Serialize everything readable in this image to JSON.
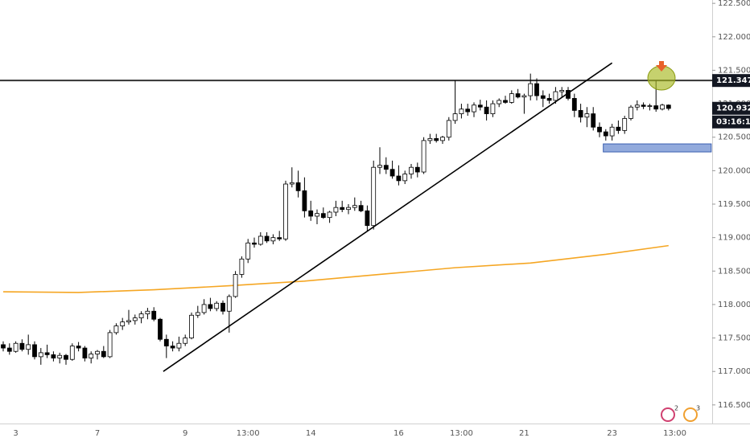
{
  "chart_data": {
    "type": "candlestick",
    "categories": [
      null,
      null,
      "3",
      null,
      null,
      null,
      null,
      null,
      null,
      null,
      null,
      null,
      null,
      null,
      null,
      "7",
      null,
      null,
      null,
      null,
      null,
      null,
      null,
      null,
      null,
      null,
      null,
      null,
      null,
      "9",
      null,
      null,
      null,
      null,
      null,
      null,
      null,
      null,
      null,
      "13:00",
      null,
      null,
      null,
      null,
      null,
      null,
      null,
      null,
      null,
      "14",
      null,
      null,
      null,
      null,
      null,
      null,
      null,
      null,
      null,
      null,
      null,
      null,
      null,
      "16",
      null,
      null,
      null,
      null,
      null,
      null,
      null,
      null,
      null,
      "13:00",
      null,
      null,
      null,
      null,
      null,
      null,
      null,
      null,
      null,
      "21",
      null,
      null,
      null,
      null,
      null,
      null,
      null,
      null,
      null,
      null,
      null,
      null,
      null,
      "23",
      null,
      null,
      null,
      null,
      null,
      null,
      null,
      null,
      null,
      "13:00"
    ],
    "ohlc": [
      [
        117.4,
        117.45,
        117.3,
        117.35
      ],
      [
        117.35,
        117.42,
        117.25,
        117.3
      ],
      [
        117.3,
        117.45,
        117.28,
        117.42
      ],
      [
        117.42,
        117.48,
        117.3,
        117.33
      ],
      [
        117.33,
        117.55,
        117.25,
        117.4
      ],
      [
        117.4,
        117.45,
        117.18,
        117.22
      ],
      [
        117.22,
        117.35,
        117.1,
        117.28
      ],
      [
        117.28,
        117.4,
        117.2,
        117.25
      ],
      [
        117.25,
        117.3,
        117.15,
        117.2
      ],
      [
        117.2,
        117.28,
        117.12,
        117.24
      ],
      [
        117.24,
        117.26,
        117.1,
        117.18
      ],
      [
        117.18,
        117.42,
        117.16,
        117.38
      ],
      [
        117.38,
        117.44,
        117.3,
        117.35
      ],
      [
        117.35,
        117.38,
        117.15,
        117.2
      ],
      [
        117.2,
        117.3,
        117.12,
        117.26
      ],
      [
        117.26,
        117.32,
        117.18,
        117.3
      ],
      [
        117.3,
        117.38,
        117.2,
        117.22
      ],
      [
        117.22,
        117.62,
        117.2,
        117.58
      ],
      [
        117.58,
        117.72,
        117.55,
        117.68
      ],
      [
        117.68,
        117.8,
        117.62,
        117.74
      ],
      [
        117.74,
        117.92,
        117.7,
        117.76
      ],
      [
        117.76,
        117.85,
        117.7,
        117.8
      ],
      [
        117.8,
        117.9,
        117.72,
        117.86
      ],
      [
        117.86,
        117.95,
        117.78,
        117.9
      ],
      [
        117.9,
        117.96,
        117.75,
        117.78
      ],
      [
        117.78,
        117.8,
        117.45,
        117.48
      ],
      [
        117.48,
        117.55,
        117.2,
        117.38
      ],
      [
        117.38,
        117.45,
        117.3,
        117.35
      ],
      [
        117.35,
        117.52,
        117.3,
        117.42
      ],
      [
        117.42,
        117.55,
        117.38,
        117.5
      ],
      [
        117.5,
        117.88,
        117.48,
        117.84
      ],
      [
        117.84,
        117.98,
        117.8,
        117.88
      ],
      [
        117.88,
        118.08,
        117.85,
        118.0
      ],
      [
        118.0,
        118.1,
        117.9,
        117.94
      ],
      [
        117.94,
        118.05,
        117.9,
        118.02
      ],
      [
        118.02,
        118.06,
        117.85,
        117.9
      ],
      [
        117.9,
        118.15,
        117.58,
        118.12
      ],
      [
        118.12,
        118.5,
        118.1,
        118.45
      ],
      [
        118.45,
        118.72,
        118.4,
        118.68
      ],
      [
        118.68,
        118.98,
        118.62,
        118.92
      ],
      [
        118.92,
        119.0,
        118.85,
        118.9
      ],
      [
        118.9,
        119.08,
        118.88,
        119.02
      ],
      [
        119.02,
        119.08,
        118.92,
        118.95
      ],
      [
        118.95,
        119.05,
        118.9,
        119.0
      ],
      [
        119.0,
        119.1,
        118.95,
        118.98
      ],
      [
        118.98,
        119.85,
        118.95,
        119.8
      ],
      [
        119.8,
        120.05,
        119.75,
        119.82
      ],
      [
        119.82,
        120.0,
        119.6,
        119.7
      ],
      [
        119.7,
        119.9,
        119.3,
        119.4
      ],
      [
        119.4,
        119.55,
        119.25,
        119.32
      ],
      [
        119.32,
        119.42,
        119.2,
        119.36
      ],
      [
        119.36,
        119.45,
        119.28,
        119.3
      ],
      [
        119.3,
        119.4,
        119.22,
        119.38
      ],
      [
        119.38,
        119.55,
        119.32,
        119.45
      ],
      [
        119.45,
        119.55,
        119.38,
        119.42
      ],
      [
        119.42,
        119.5,
        119.35,
        119.45
      ],
      [
        119.45,
        119.6,
        119.4,
        119.48
      ],
      [
        119.48,
        119.55,
        119.38,
        119.4
      ],
      [
        119.4,
        119.48,
        119.1,
        119.18
      ],
      [
        119.18,
        120.15,
        119.12,
        120.05
      ],
      [
        120.05,
        120.35,
        119.95,
        120.08
      ],
      [
        120.08,
        120.2,
        119.95,
        120.02
      ],
      [
        120.02,
        120.15,
        119.88,
        119.92
      ],
      [
        119.92,
        120.08,
        119.78,
        119.85
      ],
      [
        119.85,
        120.0,
        119.8,
        119.95
      ],
      [
        119.95,
        120.1,
        119.88,
        120.05
      ],
      [
        120.05,
        120.12,
        119.9,
        119.98
      ],
      [
        119.98,
        120.5,
        119.95,
        120.45
      ],
      [
        120.45,
        120.55,
        120.4,
        120.48
      ],
      [
        120.48,
        120.55,
        120.42,
        120.45
      ],
      [
        120.45,
        120.52,
        120.4,
        120.5
      ],
      [
        120.5,
        120.8,
        120.45,
        120.75
      ],
      [
        120.75,
        121.35,
        120.7,
        120.85
      ],
      [
        120.85,
        121.0,
        120.78,
        120.92
      ],
      [
        120.92,
        121.0,
        120.82,
        120.88
      ],
      [
        120.88,
        121.02,
        120.8,
        120.98
      ],
      [
        120.98,
        121.06,
        120.9,
        120.95
      ],
      [
        120.95,
        121.05,
        120.75,
        120.85
      ],
      [
        120.85,
        121.05,
        120.8,
        121.0
      ],
      [
        121.0,
        121.08,
        120.95,
        121.05
      ],
      [
        121.05,
        121.12,
        121.0,
        121.02
      ],
      [
        121.02,
        121.2,
        121.0,
        121.15
      ],
      [
        121.15,
        121.22,
        121.08,
        121.1
      ],
      [
        121.1,
        121.15,
        120.85,
        121.12
      ],
      [
        121.12,
        121.45,
        121.05,
        121.3
      ],
      [
        121.3,
        121.38,
        121.05,
        121.12
      ],
      [
        121.12,
        121.2,
        120.95,
        121.08
      ],
      [
        121.08,
        121.15,
        121.0,
        121.05
      ],
      [
        121.05,
        121.25,
        121.0,
        121.18
      ],
      [
        121.18,
        121.25,
        121.1,
        121.2
      ],
      [
        121.2,
        121.25,
        121.05,
        121.08
      ],
      [
        121.08,
        121.15,
        120.8,
        120.9
      ],
      [
        120.9,
        121.0,
        120.72,
        120.8
      ],
      [
        120.8,
        120.95,
        120.65,
        120.85
      ],
      [
        120.85,
        120.95,
        120.6,
        120.65
      ],
      [
        120.65,
        120.72,
        120.5,
        120.58
      ],
      [
        120.58,
        120.62,
        120.45,
        120.52
      ],
      [
        120.52,
        120.7,
        120.45,
        120.65
      ],
      [
        120.65,
        120.75,
        120.55,
        120.6
      ],
      [
        120.6,
        120.82,
        120.55,
        120.78
      ],
      [
        120.78,
        120.98,
        120.75,
        120.95
      ],
      [
        120.95,
        121.05,
        120.9,
        120.98
      ],
      [
        120.98,
        121.02,
        120.92,
        120.96
      ],
      [
        120.96,
        121.0,
        120.9,
        120.97
      ],
      [
        120.97,
        121.35,
        120.88,
        120.92
      ],
      [
        120.92,
        121.0,
        120.9,
        120.98
      ],
      [
        120.98,
        120.99,
        120.9,
        120.93
      ],
      null
    ],
    "up_color": "#ffffff",
    "down_color": "#000000",
    "moving_average": {
      "color": "#f5a623",
      "x": [
        0,
        12,
        24,
        36,
        48,
        60,
        72,
        84,
        96,
        106
      ],
      "values": [
        118.19,
        118.18,
        118.22,
        118.28,
        118.35,
        118.45,
        118.55,
        118.62,
        118.75,
        118.88
      ]
    },
    "trendline": {
      "color": "#000000",
      "x": [
        25.5,
        97
      ],
      "values": [
        117.0,
        121.61
      ]
    },
    "zone": {
      "color": "#7f9bd6",
      "x": [
        95.6,
        112.8
      ],
      "values": [
        120.28,
        120.4
      ]
    },
    "level": {
      "value": 121.347,
      "label": "121.347",
      "color": "#333333"
    },
    "last_price": {
      "value": 120.932,
      "label": "120.932",
      "countdown": "03:16:16"
    },
    "ylim": [
      116.21,
      122.55
    ],
    "yticks": [
      {
        "value": 116.5,
        "label": "116.500"
      },
      {
        "value": 117,
        "label": "117.000"
      },
      {
        "value": 117.5,
        "label": "117.500"
      },
      {
        "value": 118,
        "label": "118.000"
      },
      {
        "value": 118.5,
        "label": "118.500"
      },
      {
        "value": 119,
        "label": "119.000"
      },
      {
        "value": 119.5,
        "label": "119.500"
      },
      {
        "value": 120,
        "label": "120.000"
      },
      {
        "value": 120.5,
        "label": "120.500"
      },
      {
        "value": 121,
        "label": "121.000"
      },
      {
        "value": 121.5,
        "label": "121.500"
      },
      {
        "value": 122,
        "label": "122.000"
      },
      {
        "value": 122.5,
        "label": "122.500"
      }
    ],
    "badges": [
      "2",
      "3"
    ]
  }
}
